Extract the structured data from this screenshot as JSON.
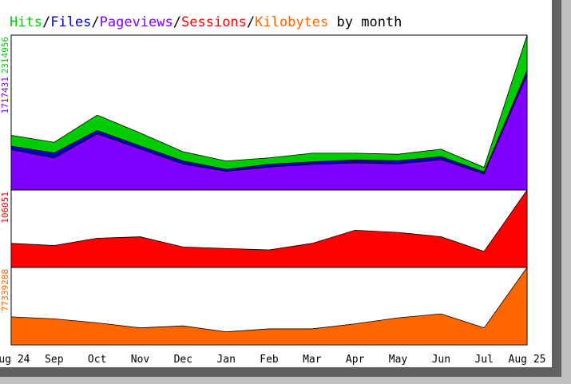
{
  "colors": {
    "hits": "#00cc00",
    "files": "#0000cc",
    "pageviews": "#8000ff",
    "sessions": "#ff0000",
    "kilobytes": "#ff6600",
    "border_dark": "#606060",
    "border_light": "#c0c0c0",
    "background": "#ffffff"
  },
  "title": {
    "hits": "Hits",
    "sep1": "/",
    "files": "Files",
    "sep2": "/",
    "pageviews": "Pageviews",
    "sep3": "/",
    "sessions": "Sessions",
    "sep4": "/",
    "kilobytes": "Kilobytes",
    "suffix": " by month"
  },
  "chart_data": [
    {
      "type": "area",
      "title": "Hits/Files/Pageviews/Sessions/Kilobytes by month",
      "x": [
        "Aug 24",
        "Sep",
        "Oct",
        "Nov",
        "Dec",
        "Jan",
        "Feb",
        "Mar",
        "Apr",
        "May",
        "Jun",
        "Jul",
        "Aug 25"
      ],
      "ylim": [
        0,
        2314956
      ],
      "y_labels": [
        {
          "text": "2314956",
          "color": "#00cc00"
        },
        {
          "text": "1717431",
          "color": "#8000ff"
        }
      ],
      "series": [
        {
          "name": "Hits",
          "color": "#00cc00",
          "values": [
            818000,
            713000,
            1120000,
            853000,
            572000,
            434000,
            480000,
            550000,
            550000,
            535000,
            610000,
            338000,
            2314956
          ]
        },
        {
          "name": "Files",
          "color": "#0000cc",
          "values": [
            655000,
            555000,
            890000,
            660000,
            434000,
            310000,
            384000,
            422000,
            450000,
            438000,
            500000,
            270000,
            1790000
          ]
        },
        {
          "name": "Pageviews",
          "color": "#8000ff",
          "values": [
            605000,
            480000,
            840000,
            615000,
            388000,
            280000,
            344000,
            382000,
            406000,
            390000,
            454000,
            242000,
            1717431
          ]
        }
      ]
    },
    {
      "type": "area",
      "x": [
        "Aug 24",
        "Sep",
        "Oct",
        "Nov",
        "Dec",
        "Jan",
        "Feb",
        "Mar",
        "Apr",
        "May",
        "Jun",
        "Jul",
        "Aug 25"
      ],
      "ylim": [
        0,
        106051
      ],
      "y_labels": [
        {
          "text": "106051",
          "color": "#ff0000"
        }
      ],
      "series": [
        {
          "name": "Sessions",
          "color": "#ff0000",
          "values": [
            33000,
            30000,
            40000,
            42000,
            28000,
            26000,
            24000,
            33000,
            51000,
            48000,
            42000,
            22000,
            106051
          ]
        }
      ]
    },
    {
      "type": "area",
      "x": [
        "Aug 24",
        "Sep",
        "Oct",
        "Nov",
        "Dec",
        "Jan",
        "Feb",
        "Mar",
        "Apr",
        "May",
        "Jun",
        "Jul",
        "Aug 25"
      ],
      "ylim": [
        0,
        77339288
      ],
      "y_labels": [
        {
          "text": "77339288",
          "color": "#ff6600"
        }
      ],
      "series": [
        {
          "name": "Kilobytes",
          "color": "#ff6600",
          "values": [
            28000000,
            26000000,
            22000000,
            17000000,
            19000000,
            13000000,
            16000000,
            16000000,
            21000000,
            27000000,
            31000000,
            17000000,
            77339288
          ]
        }
      ]
    }
  ]
}
